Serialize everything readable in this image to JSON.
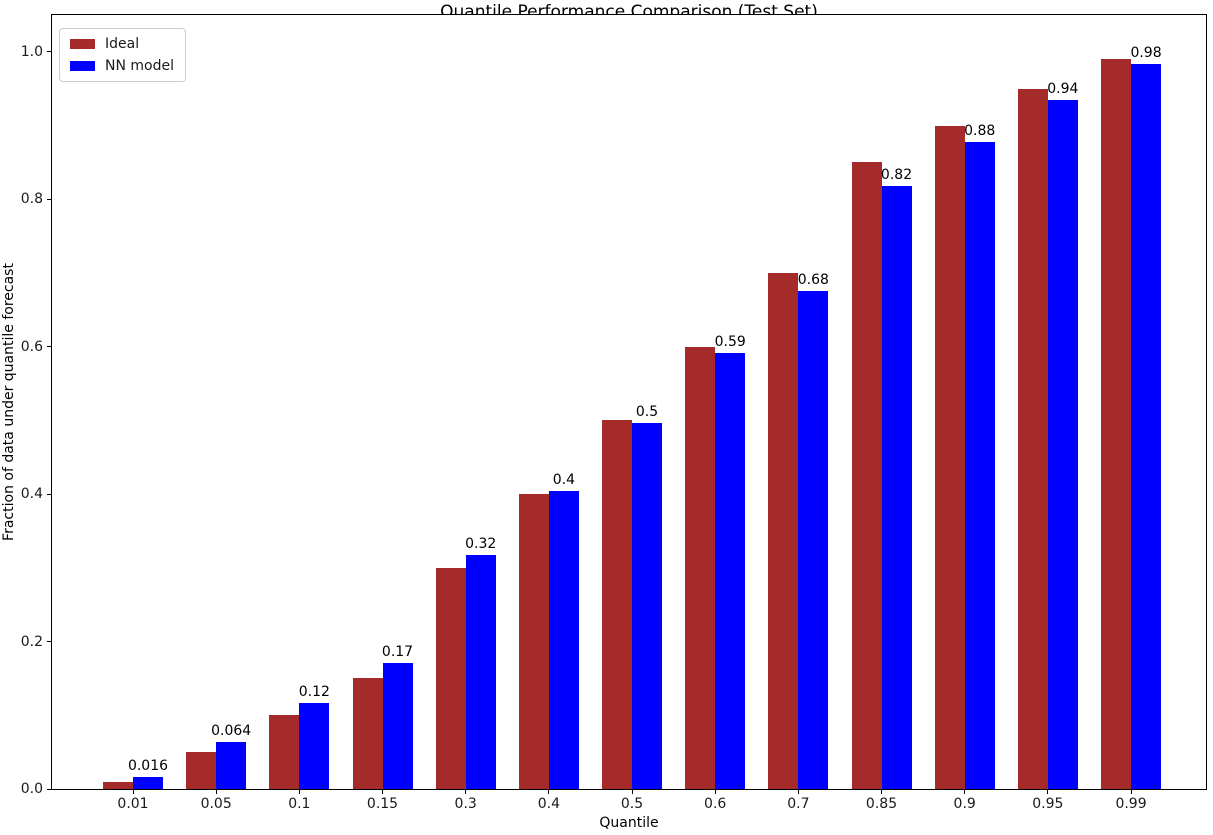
{
  "chart_data": {
    "type": "bar",
    "title": "Quantile Performance Comparison (Test Set)",
    "xlabel": "Quantile",
    "ylabel": "Fraction of data under quantile forecast",
    "categories": [
      "0.01",
      "0.05",
      "0.1",
      "0.15",
      "0.3",
      "0.4",
      "0.5",
      "0.6",
      "0.7",
      "0.85",
      "0.9",
      "0.95",
      "0.99"
    ],
    "series": [
      {
        "name": "Ideal",
        "color": "#A52A2A",
        "values": [
          0.01,
          0.05,
          0.1,
          0.15,
          0.3,
          0.4,
          0.5,
          0.6,
          0.7,
          0.85,
          0.9,
          0.95,
          0.99
        ]
      },
      {
        "name": "NN model",
        "color": "#0000FF",
        "values": [
          0.016,
          0.064,
          0.117,
          0.171,
          0.318,
          0.404,
          0.497,
          0.592,
          0.675,
          0.818,
          0.878,
          0.935,
          0.983
        ],
        "bar_labels": [
          "0.016",
          "0.064",
          "0.12",
          "0.17",
          "0.32",
          "0.4",
          "0.5",
          "0.59",
          "0.68",
          "0.82",
          "0.88",
          "0.94",
          "0.98"
        ]
      }
    ],
    "yticks": [
      "0.0",
      "0.2",
      "0.4",
      "0.6",
      "0.8",
      "1.0"
    ],
    "ylim": [
      0,
      1.05
    ],
    "grid": false,
    "legend_position": "upper-left"
  }
}
